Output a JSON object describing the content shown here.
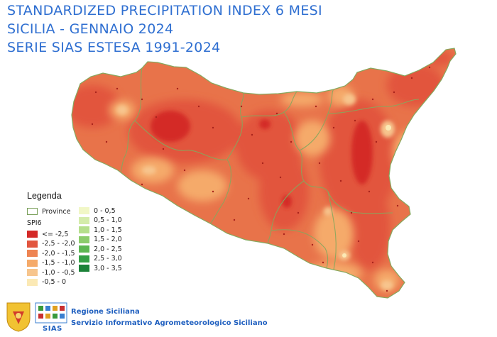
{
  "title": {
    "line1": "STANDARDIZED PRECIPITATION INDEX 6 MESI",
    "line2": "SICILIA -  GENNAIO 2024",
    "line3": "SERIE SIAS ESTESA 1991-2024"
  },
  "colors": {
    "title": "#2f6fd1",
    "base": "#e8734a",
    "class_le_-2.5": "#d42a28",
    "class_-2.5_-2.0": "#e2553e",
    "class_-2.0_-1.5": "#ee8452",
    "class_-1.5_-1.0": "#f5aa6a",
    "class_-1.0_-0.5": "#f7c58d",
    "class_-0.5_0": "#fbe9b5",
    "province_border": "#86a85e"
  },
  "legend": {
    "title": "Legenda",
    "province_label": "Province",
    "spi_label": "SPI6",
    "classes_left": [
      {
        "label": "<= -2,5",
        "color": "#d42a28"
      },
      {
        "label": "-2,5 - -2,0",
        "color": "#e2553e"
      },
      {
        "label": "-2,0 - -1,5",
        "color": "#ee8452"
      },
      {
        "label": "-1,5 - -1,0",
        "color": "#f5aa6a"
      },
      {
        "label": "-1,0 - -0,5",
        "color": "#f7c58d"
      },
      {
        "label": "-0,5 - 0",
        "color": "#fbe9b5"
      }
    ],
    "classes_right": [
      {
        "label": "0 - 0,5",
        "color": "#f1f7c6"
      },
      {
        "label": "0,5 - 1,0",
        "color": "#d4ecaa"
      },
      {
        "label": "1,0 - 1,5",
        "color": "#b5df8c"
      },
      {
        "label": "1,5 - 2,0",
        "color": "#8ccc6c"
      },
      {
        "label": "2,0 - 2,5",
        "color": "#5db752"
      },
      {
        "label": "2,5 - 3,0",
        "color": "#34a045"
      },
      {
        "label": "3,0 - 3,5",
        "color": "#1b8238"
      }
    ]
  },
  "footer": {
    "line1": "Regione Siciliana",
    "line2": "Servizio Informativo Agrometeorologico Siciliano",
    "logo_text": "SIAS"
  }
}
